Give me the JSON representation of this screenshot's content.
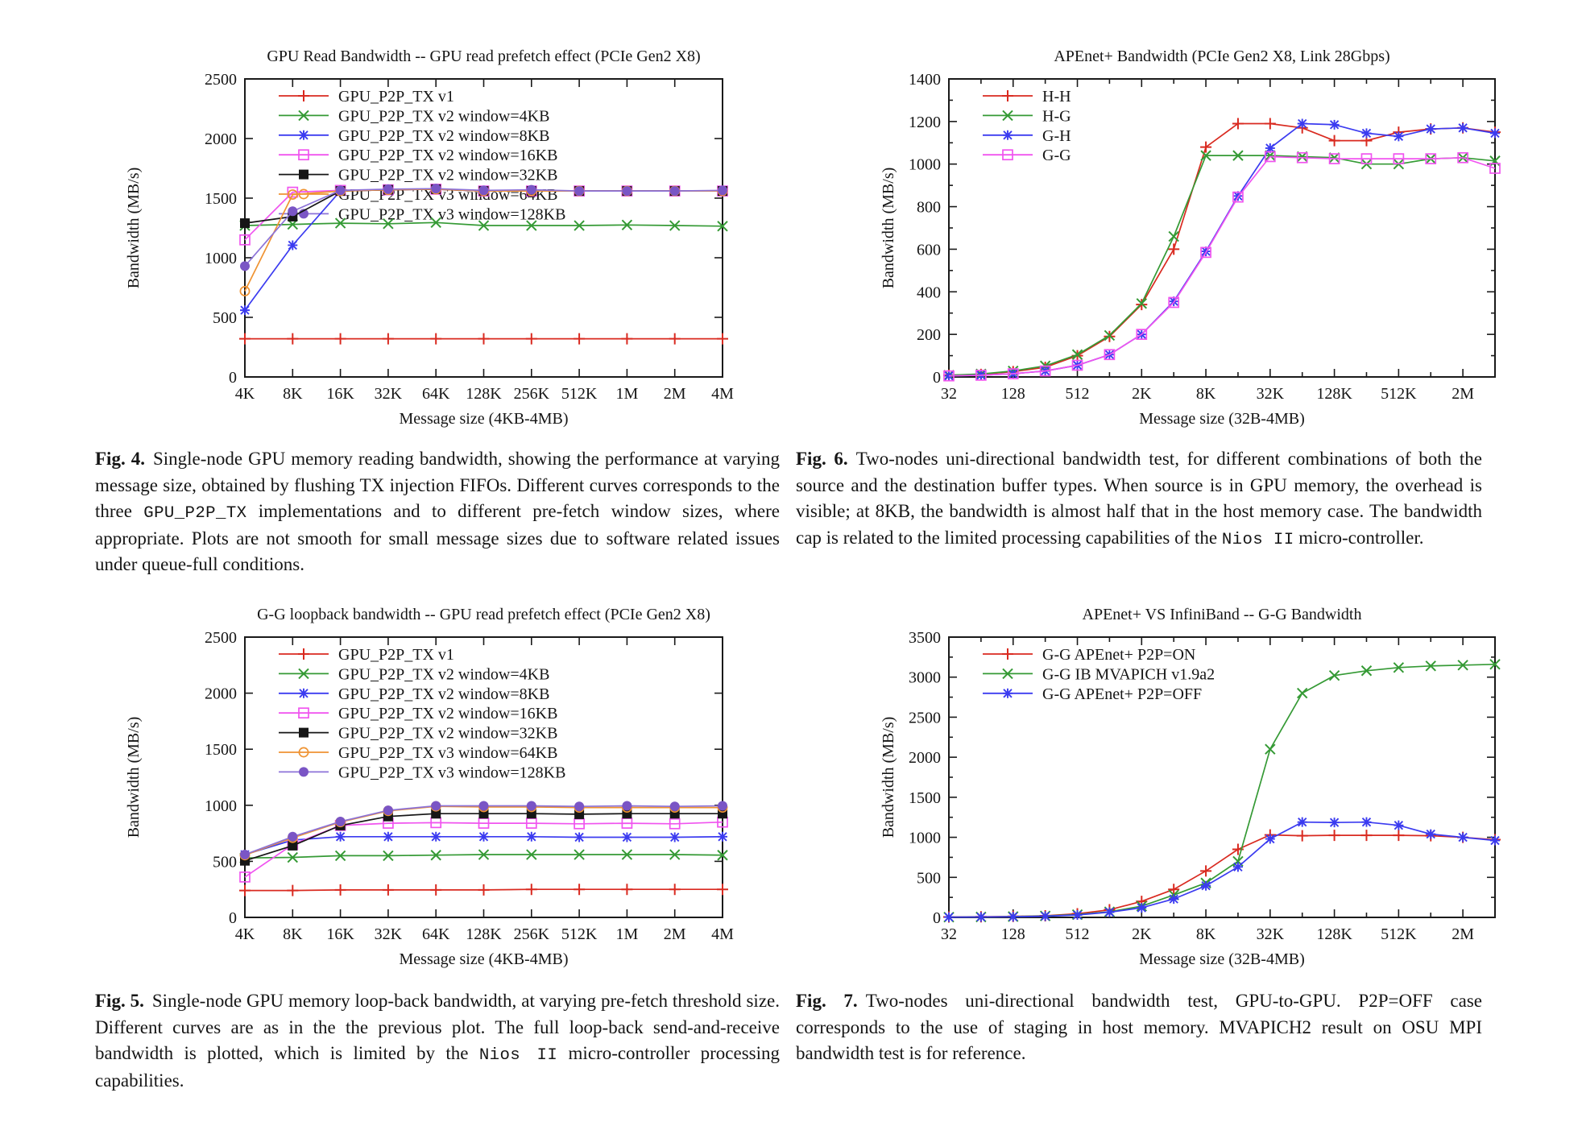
{
  "page": {
    "background": "#ffffff"
  },
  "figures": [
    {
      "id": "fig4",
      "label": "Fig. 4.",
      "caption": [
        {
          "t": "Single-node GPU memory reading bandwidth, showing the performance at varying message size, obtained by flushing TX injection FIFOs. Different curves corresponds to the three "
        },
        {
          "t": "GPU_P2P_TX",
          "mono": true
        },
        {
          "t": " implementations and to different pre-fetch window sizes, where appropriate. Plots are not smooth for small message sizes due to software related issues under queue-full conditions."
        }
      ]
    },
    {
      "id": "fig6",
      "label": "Fig. 6.",
      "caption": [
        {
          "t": "Two-nodes uni-directional bandwidth test, for different combinations of both the source and the destination buffer types. When source is in GPU memory, the overhead is visible; at 8KB, the bandwidth is almost half that in the host memory case. The bandwidth cap is related to the limited processing capabilities of the "
        },
        {
          "t": "Nios II",
          "mono": true
        },
        {
          "t": " micro-controller."
        }
      ]
    },
    {
      "id": "fig5",
      "label": "Fig. 5.",
      "caption": [
        {
          "t": "Single-node GPU memory loop-back bandwidth, at varying pre-fetch threshold size. Different curves are as in the the previous plot. The full loop-back send-and-receive bandwidth is plotted, which is limited by the "
        },
        {
          "t": "Nios II",
          "mono": true
        },
        {
          "t": " micro-controller processing capabilities."
        }
      ]
    },
    {
      "id": "fig7",
      "label": "Fig. 7.",
      "caption": [
        {
          "t": "Two-nodes uni-directional bandwidth test, GPU-to-GPU. P2P=OFF case corresponds to the use of staging in host memory. MVAPICH2 result on OSU MPI bandwidth test is for reference."
        }
      ]
    }
  ],
  "chart_data": [
    {
      "id": "fig4-chart",
      "type": "line",
      "title": "GPU Read Bandwidth -- GPU read prefetch effect (PCIe Gen2 X8)",
      "xlabel": "Message size (4KB-4MB)",
      "ylabel": "Bandwidth (MB/s)",
      "x_scale": "log2",
      "grid": false,
      "legend_position": "top-left",
      "x": [
        4096,
        8192,
        16384,
        32768,
        65536,
        131072,
        262144,
        524288,
        1048576,
        2097152,
        4194304
      ],
      "x_tick_labels": [
        "4K",
        "8K",
        "16K",
        "32K",
        "64K",
        "128K",
        "256K",
        "512K",
        "1M",
        "2M",
        "4M"
      ],
      "ylim": [
        0,
        2500
      ],
      "y_major": 500,
      "y_minor": 0,
      "series": [
        {
          "name": "GPU_P2P_TX v1",
          "color": "#d92a20",
          "marker": "plus",
          "values": [
            320,
            320,
            320,
            320,
            320,
            320,
            320,
            320,
            320,
            320,
            320
          ]
        },
        {
          "name": "GPU_P2P_TX v2 window=4KB",
          "color": "#359a35",
          "marker": "times",
          "values": [
            1270,
            1280,
            1290,
            1285,
            1295,
            1270,
            1270,
            1270,
            1275,
            1270,
            1265
          ]
        },
        {
          "name": "GPU_P2P_TX v2 window=8KB",
          "color": "#3b3bf0",
          "marker": "asterisk",
          "values": [
            560,
            1105,
            1560,
            1570,
            1575,
            1560,
            1560,
            1560,
            1560,
            1560,
            1560
          ]
        },
        {
          "name": "GPU_P2P_TX v2 window=16KB",
          "color": "#f054ef",
          "marker": "square-open",
          "values": [
            1150,
            1550,
            1565,
            1570,
            1575,
            1560,
            1560,
            1560,
            1560,
            1560,
            1560
          ]
        },
        {
          "name": "GPU_P2P_TX v2 window=32KB",
          "color": "#161616",
          "marker": "square-filled",
          "values": [
            1290,
            1345,
            1560,
            1570,
            1575,
            1560,
            1560,
            1560,
            1560,
            1560,
            1560
          ]
        },
        {
          "name": "GPU_P2P_TX v3 window=64KB",
          "color": "#ef9332",
          "marker": "circle-open",
          "values": [
            720,
            1530,
            1560,
            1570,
            1575,
            1560,
            1560,
            1560,
            1560,
            1560,
            1560
          ]
        },
        {
          "name": "GPU_P2P_TX v3 window=128KB",
          "color": "#8c72d8",
          "marker": "circle-filled",
          "marker_color": "#7a55c5",
          "values": [
            930,
            1390,
            1565,
            1575,
            1580,
            1565,
            1570,
            1560,
            1560,
            1560,
            1565
          ]
        }
      ]
    },
    {
      "id": "fig6-chart",
      "type": "line",
      "title": "APEnet+ Bandwidth (PCIe Gen2 X8, Link 28Gbps)",
      "xlabel": "Message size (32B-4MB)",
      "ylabel": "Bandwidth (MB/s)",
      "x_scale": "log2",
      "grid": false,
      "legend_position": "top-left",
      "x": [
        32,
        64,
        128,
        256,
        512,
        1024,
        2048,
        4096,
        8192,
        16384,
        32768,
        65536,
        131072,
        262144,
        524288,
        1048576,
        2097152,
        4194304
      ],
      "x_tick_labels": [
        "32",
        "",
        "128",
        "",
        "512",
        "",
        "2K",
        "",
        "8K",
        "",
        "32K",
        "",
        "128K",
        "",
        "512K",
        "",
        "2M",
        ""
      ],
      "ylim": [
        0,
        1400
      ],
      "y_major": 200,
      "y_minor": 100,
      "series": [
        {
          "name": "H-H",
          "color": "#d92a20",
          "marker": "plus",
          "values": [
            8,
            12,
            25,
            45,
            100,
            190,
            340,
            600,
            1080,
            1190,
            1190,
            1170,
            1110,
            1110,
            1150,
            1165,
            1170,
            1150
          ]
        },
        {
          "name": "H-G",
          "color": "#359a35",
          "marker": "times",
          "values": [
            8,
            14,
            28,
            52,
            105,
            195,
            345,
            660,
            1040,
            1040,
            1040,
            1035,
            1030,
            1000,
            1000,
            1025,
            1030,
            1015
          ]
        },
        {
          "name": "G-H",
          "color": "#3b3bf0",
          "marker": "asterisk",
          "values": [
            5,
            8,
            15,
            28,
            55,
            105,
            200,
            355,
            590,
            850,
            1075,
            1190,
            1185,
            1145,
            1130,
            1165,
            1170,
            1145
          ]
        },
        {
          "name": "G-G",
          "color": "#f054ef",
          "marker": "square-open",
          "values": [
            5,
            8,
            15,
            28,
            55,
            105,
            200,
            350,
            585,
            845,
            1035,
            1030,
            1025,
            1025,
            1025,
            1025,
            1030,
            980
          ]
        }
      ]
    },
    {
      "id": "fig5-chart",
      "type": "line",
      "title": "G-G loopback bandwidth -- GPU read prefetch effect (PCIe Gen2 X8)",
      "xlabel": "Message size (4KB-4MB)",
      "ylabel": "Bandwidth (MB/s)",
      "x_scale": "log2",
      "grid": false,
      "legend_position": "top-left",
      "x": [
        4096,
        8192,
        16384,
        32768,
        65536,
        131072,
        262144,
        524288,
        1048576,
        2097152,
        4194304
      ],
      "x_tick_labels": [
        "4K",
        "8K",
        "16K",
        "32K",
        "64K",
        "128K",
        "256K",
        "512K",
        "1M",
        "2M",
        "4M"
      ],
      "ylim": [
        0,
        2500
      ],
      "y_major": 500,
      "y_minor": 0,
      "series": [
        {
          "name": "GPU_P2P_TX v1",
          "color": "#d92a20",
          "marker": "plus",
          "values": [
            240,
            240,
            245,
            245,
            245,
            245,
            250,
            250,
            250,
            250,
            250
          ]
        },
        {
          "name": "GPU_P2P_TX v2 window=4KB",
          "color": "#359a35",
          "marker": "times",
          "values": [
            530,
            535,
            550,
            550,
            555,
            560,
            560,
            560,
            560,
            560,
            555
          ]
        },
        {
          "name": "GPU_P2P_TX v2 window=8KB",
          "color": "#3b3bf0",
          "marker": "asterisk",
          "values": [
            560,
            690,
            720,
            720,
            720,
            720,
            720,
            715,
            715,
            715,
            720
          ]
        },
        {
          "name": "GPU_P2P_TX v2 window=16KB",
          "color": "#f054ef",
          "marker": "square-open",
          "values": [
            360,
            650,
            820,
            840,
            845,
            840,
            840,
            835,
            840,
            835,
            850
          ]
        },
        {
          "name": "GPU_P2P_TX v2 window=32KB",
          "color": "#161616",
          "marker": "square-filled",
          "values": [
            505,
            640,
            820,
            900,
            925,
            925,
            925,
            920,
            925,
            925,
            925
          ]
        },
        {
          "name": "GPU_P2P_TX v3 window=64KB",
          "color": "#ef9332",
          "marker": "circle-open",
          "values": [
            555,
            710,
            850,
            950,
            990,
            985,
            985,
            980,
            980,
            980,
            980
          ]
        },
        {
          "name": "GPU_P2P_TX v3 window=128KB",
          "color": "#8c72d8",
          "marker": "circle-filled",
          "marker_color": "#7a55c5",
          "values": [
            560,
            720,
            855,
            955,
            995,
            995,
            995,
            990,
            995,
            990,
            995
          ]
        }
      ]
    },
    {
      "id": "fig7-chart",
      "type": "line",
      "title": "APEnet+ VS InfiniBand -- G-G Bandwidth",
      "xlabel": "Message size (32B-4MB)",
      "ylabel": "Bandwidth (MB/s)",
      "x_scale": "log2",
      "grid": false,
      "legend_position": "top-left",
      "x": [
        32,
        64,
        128,
        256,
        512,
        1024,
        2048,
        4096,
        8192,
        16384,
        32768,
        65536,
        131072,
        262144,
        524288,
        1048576,
        2097152,
        4194304
      ],
      "x_tick_labels": [
        "32",
        "",
        "128",
        "",
        "512",
        "",
        "2K",
        "",
        "8K",
        "",
        "32K",
        "",
        "128K",
        "",
        "512K",
        "",
        "2M",
        ""
      ],
      "ylim": [
        0,
        3500
      ],
      "y_major": 500,
      "y_minor": 250,
      "series": [
        {
          "name": "G-G APEnet+ P2P=ON",
          "color": "#d92a20",
          "marker": "plus",
          "values": [
            5,
            8,
            12,
            20,
            45,
            95,
            200,
            350,
            580,
            850,
            1030,
            1020,
            1025,
            1025,
            1025,
            1020,
            1000,
            970
          ]
        },
        {
          "name": "G-G IB MVAPICH v1.9a2",
          "color": "#359a35",
          "marker": "times",
          "values": [
            3,
            5,
            10,
            18,
            35,
            70,
            140,
            280,
            430,
            700,
            2100,
            2800,
            3020,
            3080,
            3120,
            3140,
            3150,
            3160
          ]
        },
        {
          "name": "G-G APEnet+ P2P=OFF",
          "color": "#3b3bf0",
          "marker": "asterisk",
          "values": [
            3,
            5,
            8,
            15,
            30,
            65,
            120,
            230,
            395,
            630,
            980,
            1190,
            1185,
            1190,
            1150,
            1040,
            1000,
            960
          ]
        }
      ]
    }
  ]
}
